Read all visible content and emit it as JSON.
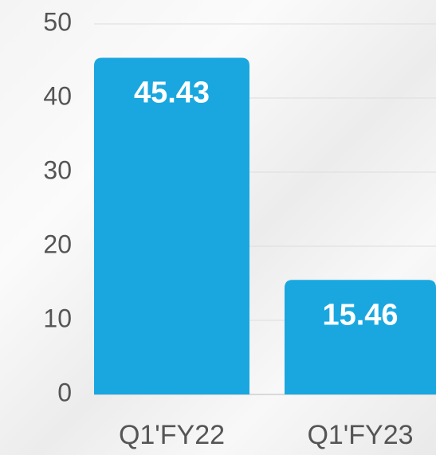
{
  "chart_data": {
    "type": "bar",
    "categories": [
      "Q1'FY22",
      "Q1'FY23"
    ],
    "values": [
      45.43,
      15.46
    ],
    "color": "#1aa7e0",
    "ylim": [
      0,
      50
    ],
    "yticks": [
      0,
      10,
      20,
      30,
      40,
      50
    ],
    "grid": true
  }
}
